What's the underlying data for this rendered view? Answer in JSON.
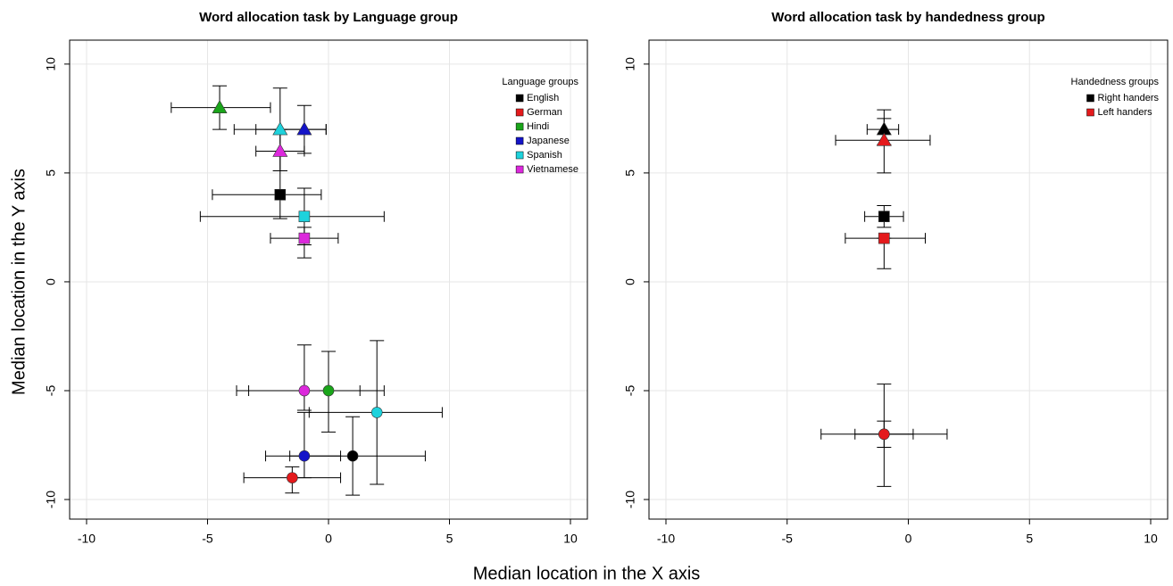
{
  "chart_data": [
    {
      "type": "scatter",
      "title": "Word allocation task by Language group",
      "xlabel": "Median location in the X axis",
      "ylabel": "Median location in the Y axis",
      "xlim": [
        -10.7,
        10.7
      ],
      "ylim": [
        -10.9,
        11.1
      ],
      "xticks": [
        -10,
        -5,
        0,
        5,
        10
      ],
      "yticks": [
        -10,
        -5,
        0,
        5,
        10
      ],
      "grid": true,
      "legend_title": "Language groups",
      "legend": "top-right",
      "series": [
        {
          "name": "English",
          "color": "#000000",
          "shapes": [
            "square",
            "circle"
          ],
          "x": [
            -2,
            1
          ],
          "y": [
            4,
            -8
          ],
          "xlo": [
            -4.8,
            -1.6
          ],
          "xhi": [
            -0.3,
            4.0
          ],
          "ylo": [
            2.9,
            -9.8
          ],
          "yhi": [
            5.1,
            -6.2
          ]
        },
        {
          "name": "German",
          "color": "#e41a1c",
          "shapes": [
            "circle"
          ],
          "x": [
            -1.5
          ],
          "y": [
            -9
          ],
          "xlo": [
            -3.5
          ],
          "xhi": [
            0.5
          ],
          "ylo": [
            -9.7
          ],
          "yhi": [
            -8.5
          ]
        },
        {
          "name": "Hindi",
          "color": "#1aa51a",
          "shapes": [
            "triangle",
            "circle"
          ],
          "x": [
            -4.5,
            0
          ],
          "y": [
            8,
            -5
          ],
          "xlo": [
            -6.5,
            -3.3
          ],
          "xhi": [
            -2.4,
            1.3
          ],
          "ylo": [
            7.0,
            -6.9
          ],
          "yhi": [
            9.0,
            -3.2
          ]
        },
        {
          "name": "Japanese",
          "color": "#1414c8",
          "shapes": [
            "triangle",
            "circle"
          ],
          "x": [
            -1,
            -1
          ],
          "y": [
            7,
            -8
          ],
          "xlo": [
            -3.0,
            -2.6
          ],
          "xhi": [
            -0.1,
            0.5
          ],
          "ylo": [
            5.9,
            -9.0
          ],
          "yhi": [
            8.1,
            -6.0
          ]
        },
        {
          "name": "Spanish",
          "color": "#1ed2dc",
          "shapes": [
            "triangle",
            "square",
            "circle"
          ],
          "x": [
            -2,
            -1,
            2
          ],
          "y": [
            7,
            3,
            -6
          ],
          "xlo": [
            -3.9,
            -5.3,
            -0.8
          ],
          "xhi": [
            -0.1,
            2.3,
            4.7
          ],
          "ylo": [
            5.1,
            1.7,
            -9.3
          ],
          "yhi": [
            8.9,
            4.3,
            -2.7
          ]
        },
        {
          "name": "Vietnamese",
          "color": "#dc28dc",
          "shapes": [
            "triangle",
            "square",
            "circle"
          ],
          "x": [
            -2,
            -1,
            -1
          ],
          "y": [
            6,
            2,
            -5
          ],
          "xlo": [
            -3.0,
            -2.4,
            -3.8
          ],
          "xhi": [
            -1.0,
            0.4,
            2.3
          ],
          "ylo": [
            5.1,
            1.1,
            -5.9
          ],
          "yhi": [
            7.0,
            2.5,
            -2.9
          ]
        }
      ]
    },
    {
      "type": "scatter",
      "title": "Word allocation task by handedness group",
      "xlim": [
        -10.7,
        10.7
      ],
      "ylim": [
        -10.9,
        11.1
      ],
      "xticks": [
        -10,
        -5,
        0,
        5,
        10
      ],
      "yticks": [
        -10,
        -5,
        0,
        5,
        10
      ],
      "grid": true,
      "legend_title": "Handedness groups",
      "legend": "top-right",
      "series": [
        {
          "name": "Right handers",
          "color": "#000000",
          "shapes": [
            "triangle",
            "square",
            "circle"
          ],
          "x": [
            -1,
            -1,
            -1
          ],
          "y": [
            7,
            3,
            -7
          ],
          "xlo": [
            -1.7,
            -1.8,
            -2.2
          ],
          "xhi": [
            -0.4,
            -0.2,
            0.2
          ],
          "ylo": [
            6.3,
            2.5,
            -7.6
          ],
          "yhi": [
            7.9,
            3.5,
            -6.4
          ]
        },
        {
          "name": "Left handers",
          "color": "#e41a1c",
          "shapes": [
            "triangle",
            "square",
            "circle"
          ],
          "x": [
            -1,
            -1,
            -1
          ],
          "y": [
            6.5,
            2,
            -7
          ],
          "xlo": [
            -3.0,
            -2.6,
            -3.6
          ],
          "xhi": [
            0.9,
            0.7,
            1.6
          ],
          "ylo": [
            5.0,
            0.6,
            -9.4
          ],
          "yhi": [
            7.5,
            2.0,
            -4.7
          ]
        }
      ]
    }
  ]
}
